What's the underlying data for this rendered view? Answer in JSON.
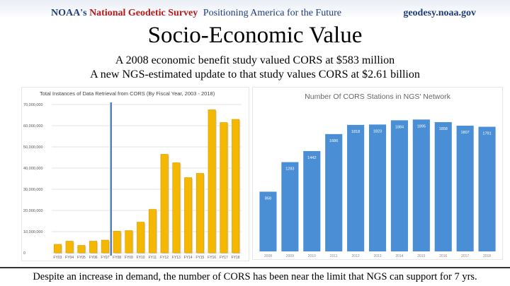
{
  "header": {
    "agency": "NOAA's",
    "office": "National Geodetic Survey",
    "tagline": "Positioning America for the Future",
    "site": "geodesy.noaa.gov"
  },
  "title": "Socio-Economic Value",
  "subtitle_1": "A 2008 economic benefit study valued CORS at $583 million",
  "subtitle_2": "A new NGS-estimated update to that study values CORS at $2.61 billion",
  "footer": "Despite an increase in demand, the number of CORS has been near the limit that NGS can support for 7 yrs.",
  "colors": {
    "bar_gold": "#f5b800",
    "bar_blue": "#4a8fd6",
    "marker_line": "#5b7db1"
  },
  "chart_data": [
    {
      "type": "bar",
      "title": "Total Instances of Data Retrieval from CORS (By Fiscal Year, 2003 - 2018)",
      "categories": [
        "FY03",
        "FY04",
        "FY05",
        "FY06",
        "FY07",
        "FY08",
        "FY09",
        "FY10",
        "FY11",
        "FY12",
        "FY13",
        "FY14",
        "FY15",
        "FY16",
        "FY17",
        "FY18"
      ],
      "values": [
        4000000,
        5500000,
        3500000,
        5500000,
        6000000,
        10200000,
        10500000,
        14500000,
        20500000,
        46500000,
        42500000,
        35500000,
        37500000,
        67500000,
        61500000,
        63000000
      ],
      "yticks": [
        0,
        10000000,
        20000000,
        30000000,
        40000000,
        50000000,
        60000000,
        70000000
      ],
      "ytick_labels": [
        "0",
        "10,000,000",
        "20,000,000",
        "30,000,000",
        "40,000,000",
        "50,000,000",
        "60,000,000",
        "70,000,000"
      ],
      "ylim": [
        0,
        70000000
      ],
      "grid": true,
      "marker_between": [
        "FY07",
        "FY08"
      ]
    },
    {
      "type": "bar",
      "title": "Number Of CORS Stations in NGS' Network",
      "categories": [
        "2008",
        "2009",
        "2010",
        "2011",
        "2012",
        "2013",
        "2014",
        "2015",
        "2016",
        "2017",
        "2018"
      ],
      "values": [
        858,
        1283,
        1442,
        1686,
        1818,
        1823,
        1884,
        1895,
        1858,
        1807,
        1791
      ],
      "value_labels": [
        "858",
        "1283",
        "1442",
        "1686",
        "1818",
        "1823",
        "1884",
        "1895",
        "1858",
        "1807",
        "1791"
      ],
      "ylim": [
        0,
        2050
      ],
      "grid": false
    }
  ]
}
